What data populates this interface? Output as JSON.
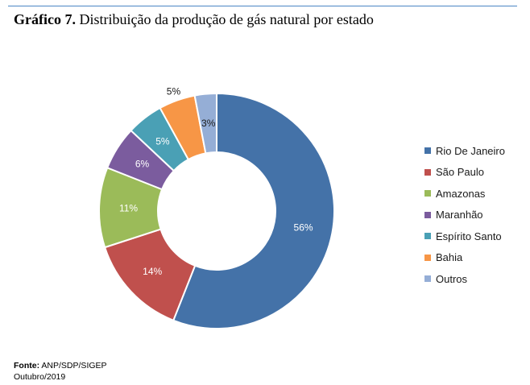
{
  "caption": {
    "label": "Gráfico 7.",
    "text": "Distribuição da produção de gás natural por estado"
  },
  "chart_data": {
    "type": "pie",
    "donut": true,
    "categories": [
      "Rio De Janeiro",
      "São Paulo",
      "Amazonas",
      "Maranhão",
      "Espírito Santo",
      "Bahia",
      "Outros"
    ],
    "values": [
      56,
      14,
      11,
      6,
      5,
      5,
      3
    ],
    "labels": [
      "56%",
      "14%",
      "11%",
      "6%",
      "5%",
      "5%",
      "3%"
    ],
    "colors": [
      "#4472a8",
      "#c0504d",
      "#9bbb59",
      "#7b5c9e",
      "#4aa0b5",
      "#f79646",
      "#95aed6"
    ],
    "legend_position": "right"
  },
  "source": {
    "label": "Fonte:",
    "text": "ANP/SDP/SIGEP",
    "date": "Outubro/2019"
  }
}
